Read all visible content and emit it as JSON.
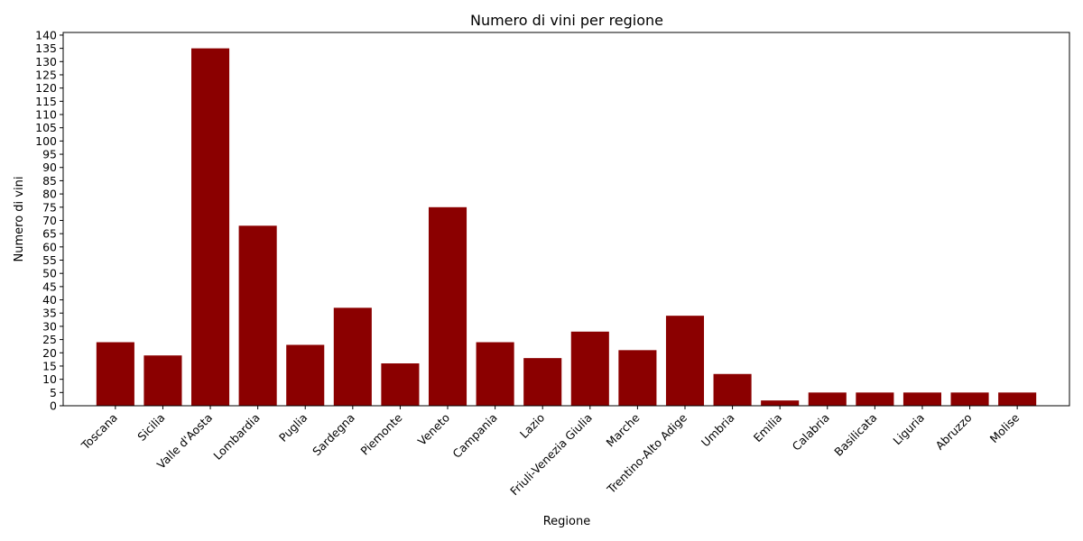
{
  "chart_data": {
    "type": "bar",
    "title": "Numero di vini per regione",
    "xlabel": "Regione",
    "ylabel": "Numero di vini",
    "categories": [
      "Toscana",
      "Sicilia",
      "Valle d'Aosta",
      "Lombardia",
      "Puglia",
      "Sardegna",
      "Piemonte",
      "Veneto",
      "Campania",
      "Lazio",
      "Friuli-Venezia Giulia",
      "Marche",
      "Trentino-Alto Adige",
      "Umbria",
      "Emilia",
      "Calabria",
      "Basilicata",
      "Liguria",
      "Abruzzo",
      "Molise"
    ],
    "values": [
      24,
      19,
      135,
      68,
      23,
      37,
      16,
      75,
      24,
      18,
      28,
      21,
      34,
      12,
      2,
      5,
      5,
      5,
      5,
      5
    ],
    "ylim": [
      0,
      141
    ],
    "yticks": [
      0,
      5,
      10,
      15,
      20,
      25,
      30,
      35,
      40,
      45,
      50,
      55,
      60,
      65,
      70,
      75,
      80,
      85,
      90,
      95,
      100,
      105,
      110,
      115,
      120,
      125,
      130,
      135,
      140
    ],
    "grid": false,
    "bar_color": "#8b0000"
  }
}
